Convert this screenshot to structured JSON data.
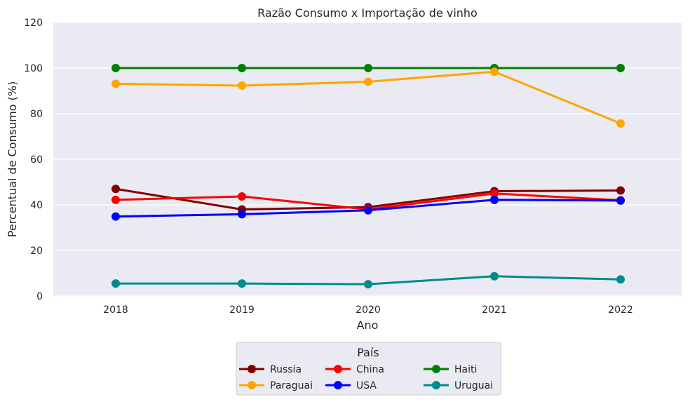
{
  "chart_data": {
    "type": "line",
    "title": "Razão Consumo x Importação de vinho",
    "xlabel": "Ano",
    "ylabel": "Percentual de Consumo (%)",
    "categories": [
      "2018",
      "2019",
      "2020",
      "2021",
      "2022"
    ],
    "ylim": [
      0,
      120
    ],
    "yticks": [
      0,
      20,
      40,
      60,
      80,
      100,
      120
    ],
    "grid": true,
    "legend": {
      "title": "País",
      "placement": "bottom-center",
      "columns": 3
    },
    "series": [
      {
        "name": "Russia",
        "color": "#800000",
        "values": [
          47.0,
          38.0,
          39.0,
          46.0,
          46.3
        ]
      },
      {
        "name": "China",
        "color": "#ff0000",
        "values": [
          42.2,
          43.7,
          38.0,
          45.0,
          42.0
        ]
      },
      {
        "name": "Haiti",
        "color": "#008000",
        "values": [
          100,
          100,
          100,
          100,
          100
        ]
      },
      {
        "name": "Paraguai",
        "color": "#ffa500",
        "values": [
          93.1,
          92.3,
          94.0,
          98.4,
          75.7
        ]
      },
      {
        "name": "USA",
        "color": "#0000ff",
        "values": [
          34.9,
          35.9,
          37.6,
          42.2,
          41.9
        ]
      },
      {
        "name": "Uruguai",
        "color": "#008b8b",
        "values": [
          5.5,
          5.5,
          5.2,
          8.7,
          7.3
        ]
      }
    ]
  }
}
